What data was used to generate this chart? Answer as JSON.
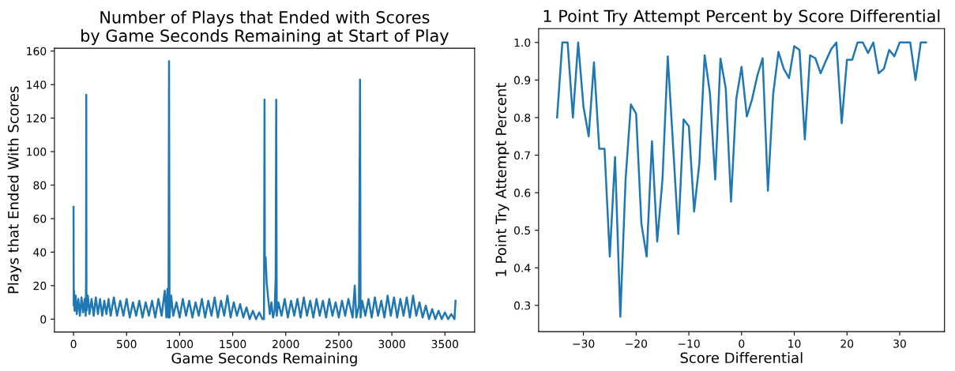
{
  "chart_data": [
    {
      "type": "line",
      "title": "Number of Plays that Ended with Scores\nby Game Seconds Remaining at Start of Play",
      "xlabel": "Game Seconds Remaining",
      "ylabel": "Plays that Ended With Scores",
      "series": [
        {
          "color": "#1f77b4",
          "x": [
            0,
            2,
            5,
            10,
            20,
            30,
            45,
            60,
            75,
            90,
            105,
            115,
            118,
            120,
            122,
            135,
            150,
            170,
            190,
            210,
            230,
            250,
            270,
            290,
            310,
            330,
            350,
            380,
            410,
            440,
            470,
            500,
            530,
            560,
            590,
            620,
            650,
            680,
            710,
            740,
            770,
            800,
            830,
            860,
            875,
            885,
            895,
            900,
            905,
            920,
            940,
            970,
            1000,
            1030,
            1060,
            1090,
            1120,
            1150,
            1180,
            1210,
            1240,
            1270,
            1300,
            1330,
            1360,
            1390,
            1420,
            1450,
            1480,
            1510,
            1540,
            1570,
            1600,
            1630,
            1660,
            1690,
            1720,
            1750,
            1780,
            1795,
            1800,
            1803,
            1810,
            1820,
            1835,
            1850,
            1865,
            1880,
            1895,
            1905,
            1910,
            1915,
            1930,
            1960,
            1990,
            2020,
            2050,
            2080,
            2110,
            2140,
            2170,
            2200,
            2230,
            2260,
            2290,
            2320,
            2350,
            2380,
            2410,
            2440,
            2470,
            2500,
            2530,
            2560,
            2590,
            2630,
            2650,
            2665,
            2690,
            2700,
            2705,
            2720,
            2750,
            2780,
            2810,
            2840,
            2870,
            2900,
            2930,
            2960,
            2990,
            3020,
            3050,
            3080,
            3110,
            3140,
            3170,
            3200,
            3230,
            3260,
            3290,
            3320,
            3350,
            3380,
            3410,
            3440,
            3470,
            3500,
            3530,
            3560,
            3590,
            3600
          ],
          "values": [
            67,
            8,
            17,
            5,
            14,
            3,
            12,
            2,
            13,
            4,
            12,
            2,
            25,
            134,
            5,
            14,
            3,
            12,
            2,
            13,
            3,
            12,
            2,
            11,
            3,
            12,
            2,
            13,
            2,
            11,
            2,
            12,
            1,
            10,
            2,
            11,
            1,
            10,
            2,
            11,
            1,
            12,
            2,
            17,
            1,
            18,
            1,
            154,
            1,
            14,
            2,
            10,
            1,
            12,
            2,
            11,
            1,
            10,
            2,
            12,
            1,
            11,
            2,
            13,
            1,
            11,
            2,
            14,
            1,
            10,
            2,
            9,
            1,
            7,
            0,
            5,
            0,
            4,
            0,
            0,
            131,
            30,
            37,
            22,
            12,
            3,
            10,
            1,
            5,
            25,
            131,
            2,
            10,
            2,
            12,
            1,
            11,
            2,
            12,
            1,
            13,
            2,
            11,
            1,
            12,
            2,
            11,
            1,
            12,
            2,
            10,
            1,
            11,
            2,
            12,
            1,
            20,
            1,
            8,
            143,
            1,
            11,
            2,
            12,
            1,
            13,
            2,
            11,
            1,
            14,
            2,
            13,
            1,
            12,
            2,
            13,
            1,
            14,
            2,
            10,
            1,
            8,
            0,
            6,
            0,
            5,
            0,
            4,
            0,
            3,
            0,
            11
          ]
        }
      ],
      "xlim": [
        -180,
        3780
      ],
      "xticks": [
        0,
        500,
        1000,
        1500,
        2000,
        2500,
        3000,
        3500
      ],
      "ylim": [
        -7.7,
        161.7
      ],
      "yticks": [
        0,
        20,
        40,
        60,
        80,
        100,
        120,
        140,
        160
      ],
      "grid": false,
      "legend": false
    },
    {
      "type": "line",
      "title": "1 Point Try Attempt Percent by Score Differential",
      "xlabel": "Score Differential",
      "ylabel": "1 Point Try Attempt Percent",
      "series": [
        {
          "color": "#1f77b4",
          "x": [
            -35,
            -34,
            -33,
            -32,
            -31,
            -30,
            -29,
            -28,
            -27,
            -26,
            -25,
            -24,
            -23,
            -22,
            -21,
            -20,
            -19,
            -18,
            -17,
            -16,
            -15,
            -14,
            -13,
            -12,
            -11,
            -10,
            -9,
            -8,
            -7,
            -6,
            -5,
            -4,
            -3,
            -2,
            -1,
            0,
            1,
            2,
            3,
            4,
            5,
            6,
            7,
            8,
            9,
            10,
            11,
            12,
            13,
            14,
            15,
            16,
            17,
            18,
            19,
            20,
            21,
            22,
            23,
            24,
            25,
            26,
            27,
            28,
            29,
            30,
            31,
            32,
            33,
            34,
            35
          ],
          "values": [
            0.8,
            1.0,
            1.0,
            0.8,
            1.0,
            0.83,
            0.75,
            0.947,
            0.717,
            0.717,
            0.43,
            0.695,
            0.27,
            0.636,
            0.835,
            0.81,
            0.517,
            0.43,
            0.737,
            0.47,
            0.636,
            0.963,
            0.727,
            0.49,
            0.795,
            0.777,
            0.55,
            0.68,
            0.966,
            0.865,
            0.635,
            0.957,
            0.878,
            0.576,
            0.85,
            0.935,
            0.803,
            0.849,
            0.912,
            0.958,
            0.605,
            0.863,
            0.975,
            0.93,
            0.905,
            0.99,
            0.98,
            0.742,
            0.966,
            0.958,
            0.918,
            0.951,
            0.982,
            1.0,
            0.785,
            0.954,
            0.954,
            1.0,
            1.0,
            0.972,
            1.0,
            0.918,
            0.93,
            0.98,
            0.963,
            1.0,
            1.0,
            1.0,
            0.9,
            1.0,
            1.0
          ]
        }
      ],
      "xlim": [
        -38.5,
        38.5
      ],
      "xticks": [
        {
          "value": -30,
          "label": "−30"
        },
        {
          "value": -20,
          "label": "−20"
        },
        {
          "value": -10,
          "label": "−10"
        },
        0,
        10,
        20,
        30
      ],
      "ylim": [
        0.23,
        1.037
      ],
      "yticks": [
        {
          "value": 0.3,
          "label": "0.3"
        },
        {
          "value": 0.4,
          "label": "0.4"
        },
        {
          "value": 0.5,
          "label": "0.5"
        },
        {
          "value": 0.6,
          "label": "0.6"
        },
        {
          "value": 0.7,
          "label": "0.7"
        },
        {
          "value": 0.8,
          "label": "0.8"
        },
        {
          "value": 0.9,
          "label": "0.9"
        },
        {
          "value": 1.0,
          "label": "1.0"
        }
      ],
      "grid": false,
      "legend": false
    }
  ]
}
